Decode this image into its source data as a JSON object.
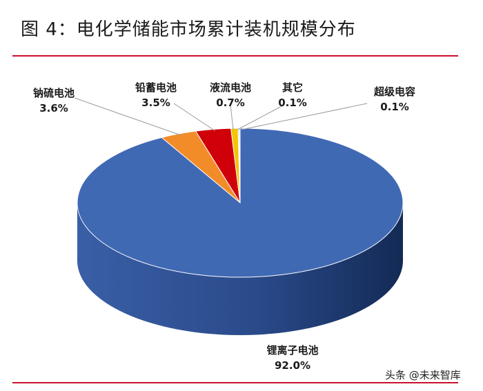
{
  "title": "图 4：电化学储能市场累计装机规模分布",
  "watermark": "头条 @未来智库",
  "chart_data": {
    "type": "pie",
    "style": "3d",
    "legend": "none",
    "slices": [
      {
        "name": "锂离子电池",
        "value": 92.0,
        "label": "92.0%",
        "color": "#4069B4"
      },
      {
        "name": "钠硫电池",
        "value": 3.6,
        "label": "3.6%",
        "color": "#F28C28"
      },
      {
        "name": "铅蓄电池",
        "value": 3.5,
        "label": "3.5%",
        "color": "#D0000A"
      },
      {
        "name": "液流电池",
        "value": 0.7,
        "label": "0.7%",
        "color": "#F5C400"
      },
      {
        "name": "其它",
        "value": 0.1,
        "label": "0.1%",
        "color": "#7FB0E0"
      },
      {
        "name": "超级电容",
        "value": 0.1,
        "label": "0.1%",
        "color": "#A8C8EE"
      }
    ]
  }
}
